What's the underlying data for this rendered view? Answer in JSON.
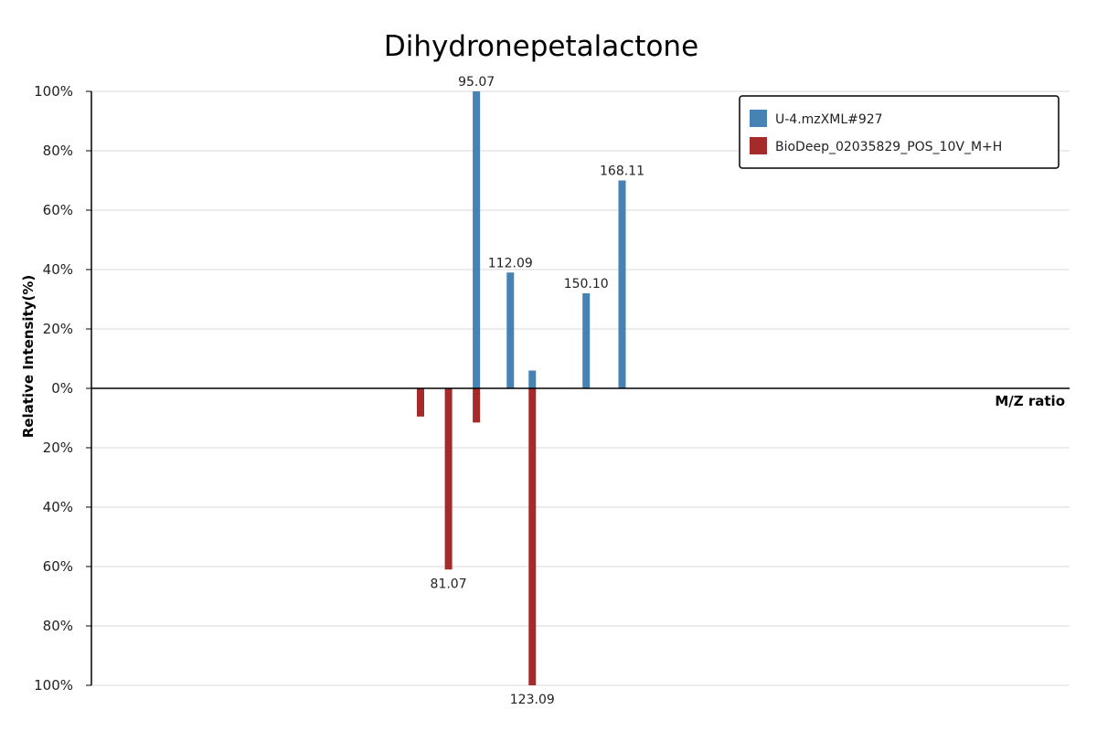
{
  "chart_data": {
    "type": "bar",
    "title": "Dihydronepetalactone",
    "xlabel": "M/Z ratio",
    "ylabel": "Relative Intensity(%)",
    "ylim": [
      -100,
      100
    ],
    "y_ticks": [
      {
        "value": 100,
        "label": "100%"
      },
      {
        "value": 80,
        "label": "80%"
      },
      {
        "value": 60,
        "label": "60%"
      },
      {
        "value": 40,
        "label": "40%"
      },
      {
        "value": 20,
        "label": "20%"
      },
      {
        "value": 0,
        "label": "0%"
      },
      {
        "value": -20,
        "label": "20%"
      },
      {
        "value": -40,
        "label": "40%"
      },
      {
        "value": -60,
        "label": "60%"
      },
      {
        "value": -80,
        "label": "80%"
      },
      {
        "value": -100,
        "label": "100%"
      }
    ],
    "grid": true,
    "legend_position": "top-right",
    "series": [
      {
        "name": "U-4.mzXML#927",
        "color": "#4682b4",
        "direction": "up",
        "points": [
          {
            "mz": 95.07,
            "intensity": 100,
            "label": "95.07"
          },
          {
            "mz": 112.09,
            "intensity": 39,
            "label": "112.09"
          },
          {
            "mz": 123.09,
            "intensity": 6,
            "label": ""
          },
          {
            "mz": 150.1,
            "intensity": 32,
            "label": "150.10"
          },
          {
            "mz": 168.11,
            "intensity": 70,
            "label": "168.11"
          }
        ]
      },
      {
        "name": "BioDeep_02035829_POS_10V_M+H",
        "color": "#a52a2a",
        "direction": "down",
        "points": [
          {
            "mz": 67.05,
            "intensity": 9.5,
            "label": ""
          },
          {
            "mz": 81.07,
            "intensity": 61,
            "label": "81.07"
          },
          {
            "mz": 95.07,
            "intensity": 11.5,
            "label": ""
          },
          {
            "mz": 123.09,
            "intensity": 100,
            "label": "123.09"
          }
        ]
      }
    ]
  }
}
